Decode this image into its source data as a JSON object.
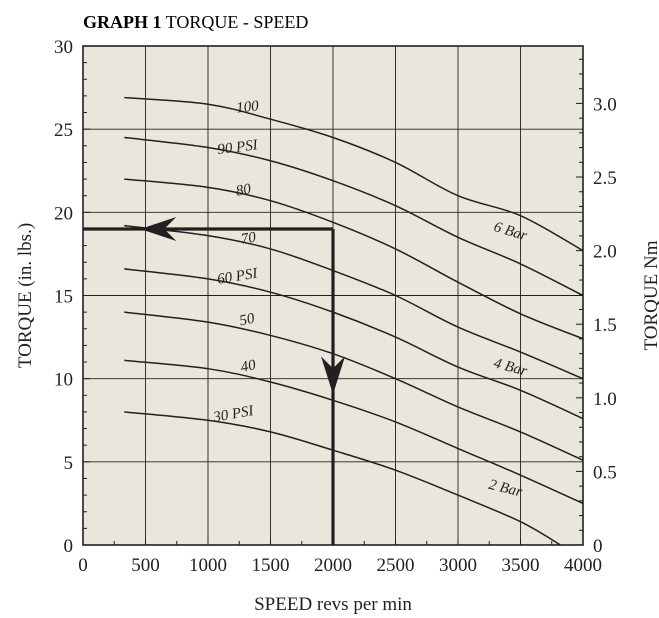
{
  "title": {
    "bold": "GRAPH 1",
    "rest": " TORQUE - SPEED"
  },
  "colors": {
    "plot_background": "#e9e7dc",
    "grid": "#231f20",
    "curves": "#231f20",
    "indicator": "#231f20"
  },
  "chart_data": {
    "type": "line",
    "title": "GRAPH 1 TORQUE - SPEED",
    "xlabel": "SPEED revs per min",
    "ylabel": "TORQUE (in. lbs.)",
    "y2label": "TORQUE Nm",
    "xlim": [
      0,
      4000
    ],
    "ylim": [
      0,
      30
    ],
    "y2lim": [
      0,
      3.39
    ],
    "x_ticks": [
      0,
      500,
      1000,
      1500,
      2000,
      2500,
      3000,
      3500,
      4000
    ],
    "y_ticks": [
      0,
      5,
      10,
      15,
      20,
      25,
      30
    ],
    "y2_ticks": [
      0,
      0.5,
      1.0,
      1.5,
      2.0,
      2.5,
      3.0
    ],
    "x_tick_labels": [
      "0",
      "500",
      "1000",
      "1500",
      "2000",
      "2500",
      "3000",
      "3500",
      "4000"
    ],
    "y_tick_labels": [
      "0",
      "5",
      "10",
      "15",
      "20",
      "25",
      "30"
    ],
    "y2_tick_labels": [
      "0",
      "0.5",
      "1.0",
      "1.5",
      "2.0",
      "2.5",
      "3.0"
    ],
    "grid": true,
    "series": [
      {
        "name": "100",
        "x": [
          330,
          1000,
          1500,
          2000,
          2500,
          3000,
          3500,
          4000
        ],
        "y": [
          26.9,
          26.5,
          25.6,
          24.5,
          23.0,
          21.0,
          19.8,
          17.7
        ]
      },
      {
        "name": "90 PSI",
        "x": [
          330,
          1000,
          1500,
          2000,
          2500,
          3000,
          3500,
          4000
        ],
        "y": [
          24.5,
          23.9,
          23.1,
          21.9,
          20.4,
          18.5,
          16.9,
          15.0
        ]
      },
      {
        "name": "80",
        "x": [
          330,
          1000,
          1500,
          2000,
          2500,
          3000,
          3500,
          4000
        ],
        "y": [
          22.0,
          21.5,
          20.7,
          19.4,
          17.8,
          15.8,
          13.9,
          12.4
        ]
      },
      {
        "name": "70",
        "x": [
          330,
          1000,
          1500,
          2000,
          2500,
          3000,
          3500,
          4000
        ],
        "y": [
          19.2,
          18.6,
          17.8,
          16.5,
          15.0,
          13.1,
          11.6,
          10.0
        ]
      },
      {
        "name": "60 PSI",
        "x": [
          330,
          1000,
          1500,
          2000,
          2500,
          3000,
          3500,
          4000
        ],
        "y": [
          16.6,
          16.0,
          15.2,
          14.0,
          12.5,
          10.7,
          9.3,
          7.6
        ]
      },
      {
        "name": "50",
        "x": [
          330,
          1000,
          1500,
          2000,
          2500,
          3000,
          3500,
          4000
        ],
        "y": [
          14.0,
          13.4,
          12.6,
          11.5,
          10.0,
          8.3,
          6.8,
          5.1
        ]
      },
      {
        "name": "40",
        "x": [
          330,
          1000,
          1500,
          2000,
          2500,
          3000,
          3500,
          4000
        ],
        "y": [
          11.1,
          10.6,
          9.8,
          8.7,
          7.4,
          5.8,
          4.2,
          2.5
        ]
      },
      {
        "name": "30 PSI",
        "x": [
          330,
          1000,
          1500,
          2000,
          2500,
          3000,
          3500,
          3820
        ],
        "y": [
          8.0,
          7.5,
          6.8,
          5.7,
          4.5,
          3.0,
          1.4,
          0.0
        ]
      }
    ],
    "curve_labels": [
      {
        "text": "100",
        "x": 1230,
        "y": 26.0,
        "angle": -6
      },
      {
        "text": "90 PSI",
        "x": 1080,
        "y": 23.5,
        "angle": -7
      },
      {
        "text": "80",
        "x": 1230,
        "y": 21.0,
        "angle": -10
      },
      {
        "text": "70",
        "x": 1270,
        "y": 18.1,
        "angle": -10
      },
      {
        "text": "60 PSI",
        "x": 1080,
        "y": 15.7,
        "angle": -9
      },
      {
        "text": "50",
        "x": 1260,
        "y": 13.2,
        "angle": -12
      },
      {
        "text": "40",
        "x": 1270,
        "y": 10.4,
        "angle": -12
      },
      {
        "text": "30 PSI",
        "x": 1050,
        "y": 7.4,
        "angle": -10
      },
      {
        "text": "6 Bar",
        "x": 3280,
        "y": 18.9,
        "angle": 17
      },
      {
        "text": "4 Bar",
        "x": 3280,
        "y": 10.7,
        "angle": 15
      },
      {
        "text": "2 Bar",
        "x": 3240,
        "y": 3.4,
        "angle": 14
      }
    ],
    "indicator": {
      "speed": 2000,
      "torque": 19.0
    }
  }
}
